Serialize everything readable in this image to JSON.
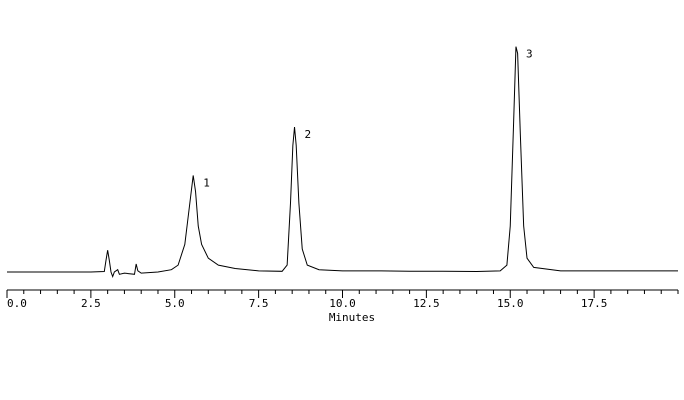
{
  "chart_data": {
    "type": "line",
    "x_label": "Minutes",
    "color": "#000000",
    "x": [
      0,
      2.5,
      2.9,
      2.95,
      3.0,
      3.05,
      3.1,
      3.15,
      3.2,
      3.3,
      3.35,
      3.5,
      3.8,
      3.85,
      3.9,
      4.0,
      4.5,
      4.9,
      5.1,
      5.3,
      5.45,
      5.55,
      5.62,
      5.7,
      5.8,
      6.0,
      6.3,
      6.8,
      7.5,
      8.2,
      8.35,
      8.45,
      8.52,
      8.57,
      8.62,
      8.7,
      8.8,
      8.95,
      9.3,
      10,
      11,
      12,
      13,
      14,
      14.7,
      14.9,
      15.0,
      15.1,
      15.17,
      15.22,
      15.3,
      15.4,
      15.5,
      15.7,
      16.5,
      17,
      20
    ],
    "values": [
      0,
      0,
      0.2,
      5,
      9.5,
      5,
      0,
      -2,
      0,
      1,
      -1,
      -0.5,
      -1,
      3.5,
      0.5,
      -0.5,
      0,
      1,
      3,
      12,
      30,
      42,
      35,
      20,
      12,
      6,
      3,
      1.5,
      0.5,
      0.3,
      3,
      30,
      55,
      63,
      55,
      30,
      10,
      3,
      1,
      0.5,
      0.5,
      0.3,
      0.3,
      0.2,
      0.5,
      3,
      20,
      65,
      98,
      95,
      60,
      20,
      6,
      2,
      0.5,
      0.5,
      0.5
    ],
    "annotations": [
      {
        "text": "1",
        "x": 5.55,
        "y": 42
      },
      {
        "text": "2",
        "x": 8.57,
        "y": 63
      },
      {
        "text": "3",
        "x": 15.17,
        "y": 98
      }
    ],
    "xlim": [
      0,
      20
    ],
    "ylim": [
      0,
      100
    ],
    "xticks": [
      {
        "value": 0,
        "label": "0.0"
      },
      {
        "value": 2.5,
        "label": "2.5"
      },
      {
        "value": 5,
        "label": "5.0"
      },
      {
        "value": 7.5,
        "label": "7.5"
      },
      {
        "value": 10,
        "label": "10.0"
      },
      {
        "value": 12.5,
        "label": "12.5"
      },
      {
        "value": 15,
        "label": "15.0"
      },
      {
        "value": 17.5,
        "label": "17.5"
      }
    ],
    "xminorticks": [
      0.5,
      1,
      1.5,
      2,
      3,
      3.5,
      4,
      4.5,
      5.5,
      6,
      6.5,
      7,
      8,
      8.5,
      9,
      9.5,
      10.5,
      11,
      11.5,
      12,
      13,
      13.5,
      14,
      14.5,
      15.5,
      16,
      16.5,
      17,
      18,
      18.5,
      19,
      19.5,
      20
    ]
  }
}
